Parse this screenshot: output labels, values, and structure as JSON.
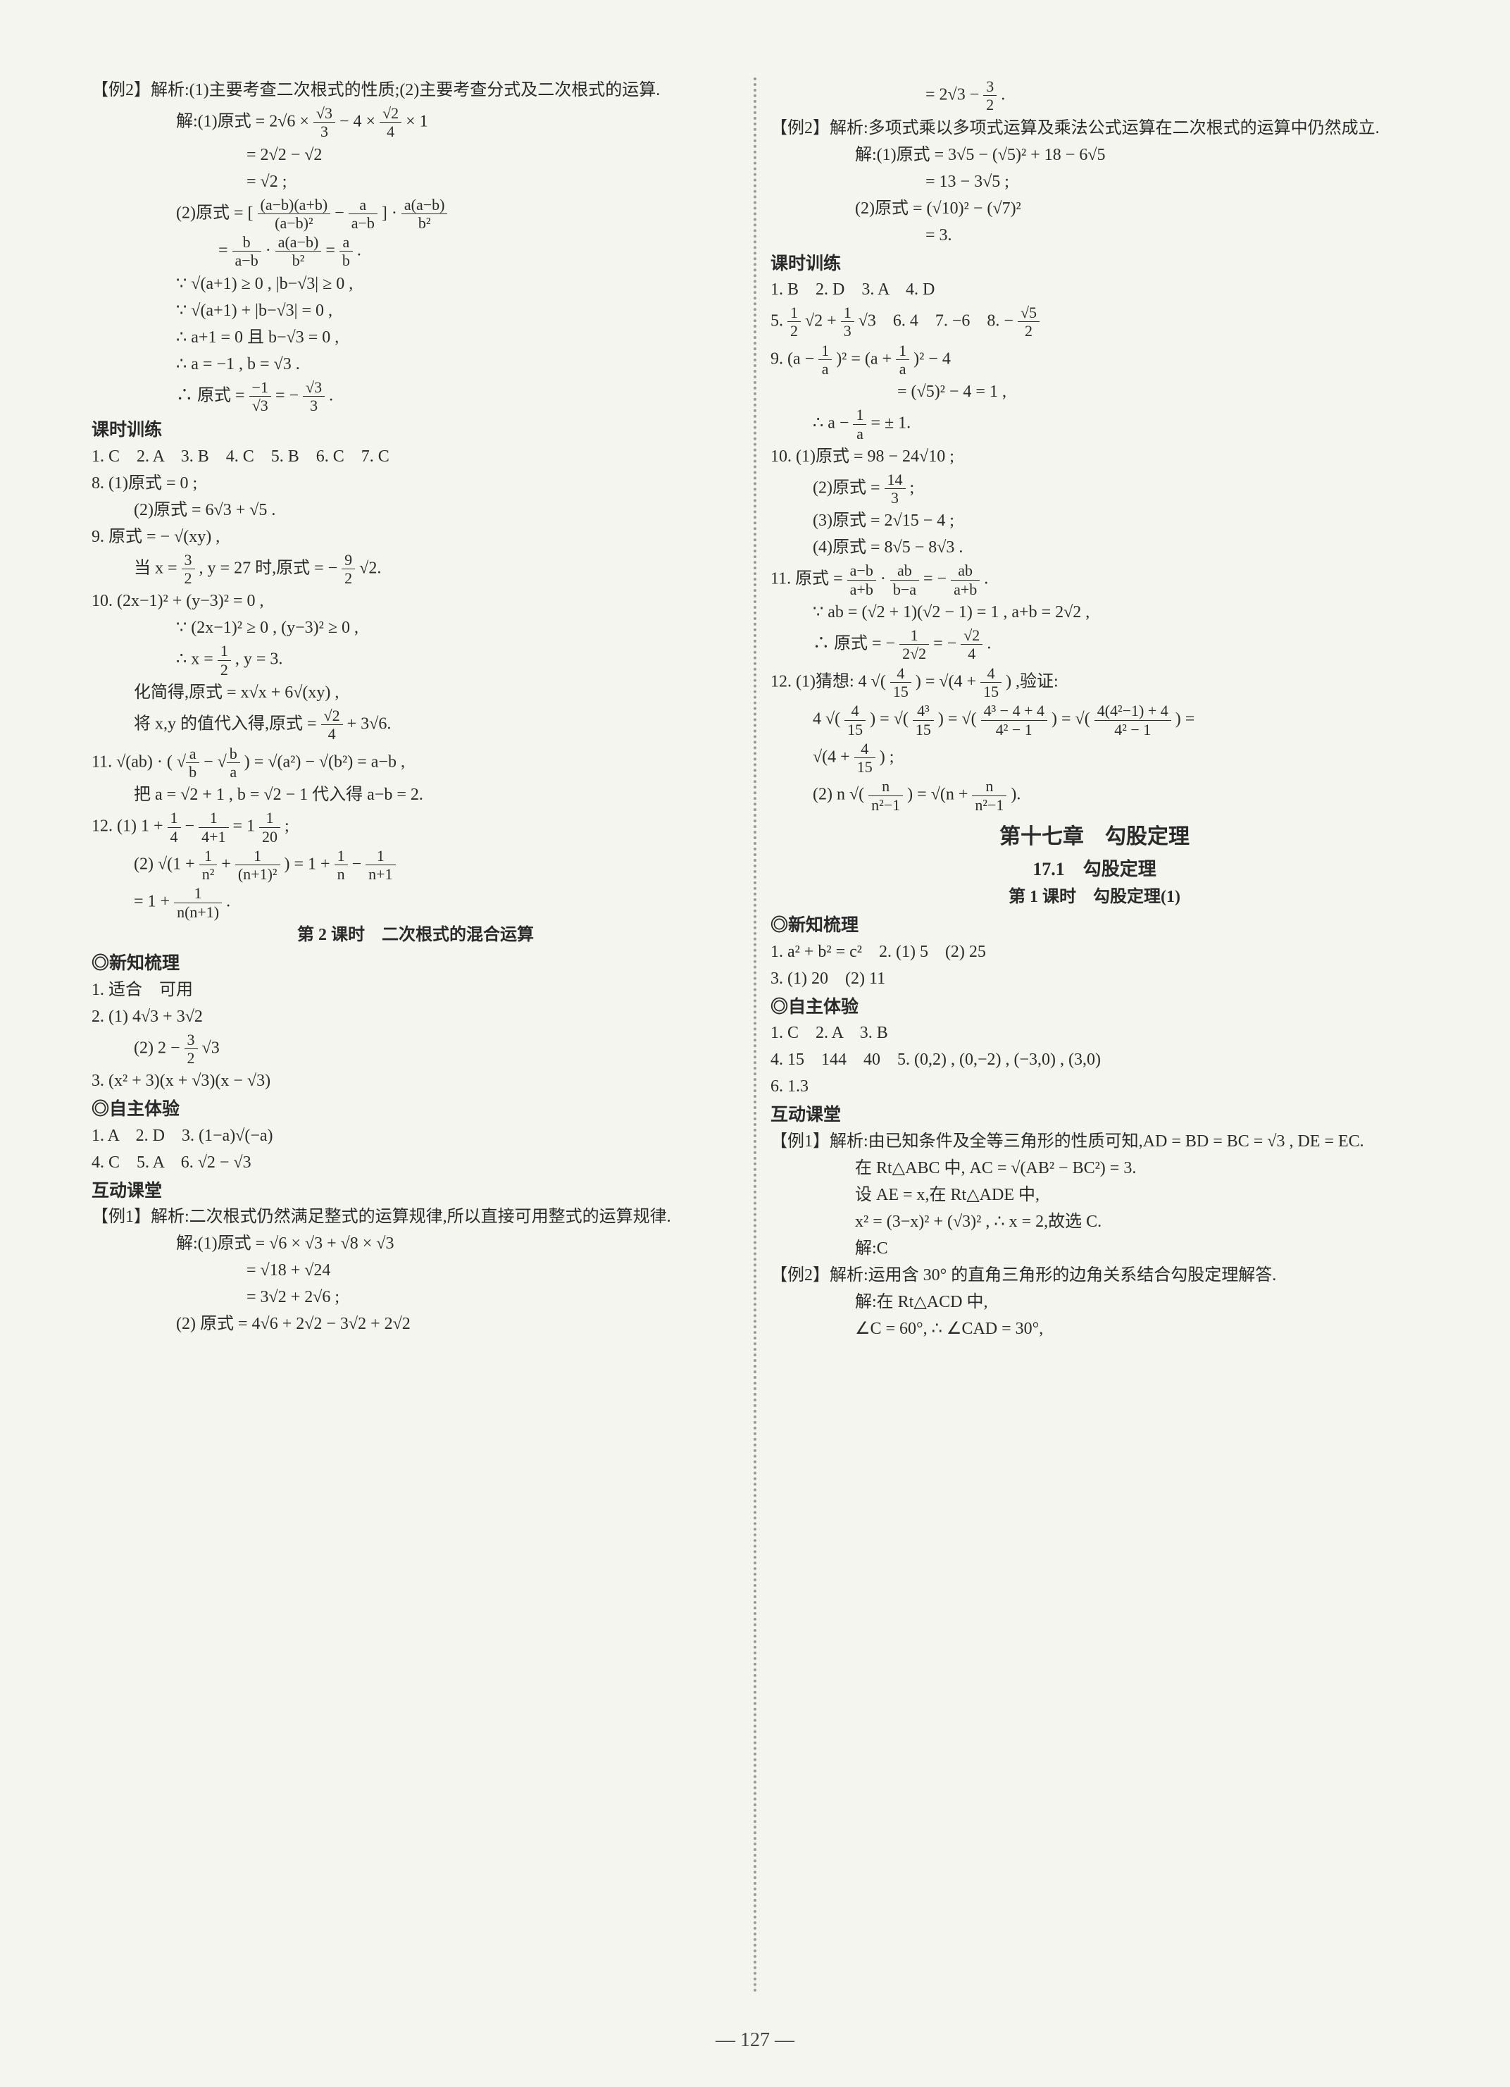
{
  "pageNumber": "— 127 —",
  "leftColumn": {
    "ex2": {
      "header": "【例2】解析:(1)主要考查二次根式的性质;(2)主要考查分式及二次根式的运算.",
      "solve1_label": "解:(1)原式",
      "s1_l1_a": " = 2√6 × ",
      "s1_l1_frac_num": "√3",
      "s1_l1_frac_den": "3",
      "s1_l1_b": " − 4 × ",
      "s1_l1_frac2_num": "√2",
      "s1_l1_frac2_den": "4",
      "s1_l1_c": " × 1",
      "s1_l2": "= 2√2 − √2",
      "s1_l3": "= √2 ;",
      "s2_label": "(2)原式 = [",
      "s2_l1_frac_num": "(a−b)(a+b)",
      "s2_l1_frac_den": "(a−b)²",
      "s2_l1_mid": " − ",
      "s2_l1_frac2_num": "a",
      "s2_l1_frac2_den": "a−b",
      "s2_l1_mid2": "] · ",
      "s2_l1_frac3_num": "a(a−b)",
      "s2_l1_frac3_den": "b²",
      "s2_l2_a": "= ",
      "s2_l2_frac_num": "b",
      "s2_l2_frac_den": "a−b",
      "s2_l2_b": " · ",
      "s2_l2_frac2_num": "a(a−b)",
      "s2_l2_frac2_den": "b²",
      "s2_l2_c": " = ",
      "s2_l2_frac3_num": "a",
      "s2_l2_frac3_den": "b",
      "s2_l2_d": ".",
      "s2_l3": "∵ √(a+1) ≥ 0 , |b−√3| ≥ 0 ,",
      "s2_l4": "∵ √(a+1) + |b−√3| = 0 ,",
      "s2_l5": "∴ a+1 = 0 且 b−√3 = 0 ,",
      "s2_l6": "∴ a = −1 , b = √3 .",
      "s2_l7_a": "∴ 原式 = ",
      "s2_l7_frac_num": "−1",
      "s2_l7_frac_den": "√3",
      "s2_l7_b": " = − ",
      "s2_l7_frac2_num": "√3",
      "s2_l7_frac2_den": "3",
      "s2_l7_c": "."
    },
    "keshi1": {
      "title": "课时训练",
      "q1to7": "1. C　2. A　3. B　4. C　5. B　6. C　7. C",
      "q8_1": "8. (1)原式 = 0 ;",
      "q8_2": "(2)原式 = 6√3 + √5 .",
      "q9_l1": "9. 原式 = − √(xy) ,",
      "q9_l2_a": "当 x = ",
      "q9_l2_frac_num": "3",
      "q9_l2_frac_den": "2",
      "q9_l2_b": " , y = 27 时,原式 = − ",
      "q9_l2_frac2_num": "9",
      "q9_l2_frac2_den": "2",
      "q9_l2_c": "√2.",
      "q10_l1": "10. (2x−1)² + (y−3)² = 0 ,",
      "q10_l2": "∵ (2x−1)² ≥ 0 , (y−3)² ≥ 0 ,",
      "q10_l3_a": "∴ x = ",
      "q10_l3_frac_num": "1",
      "q10_l3_frac_den": "2",
      "q10_l3_b": " , y = 3.",
      "q10_l4": "化简得,原式 = x√x + 6√(xy) ,",
      "q10_l5_a": "将 x,y 的值代入得,原式 = ",
      "q10_l5_frac_num": "√2",
      "q10_l5_frac_den": "4",
      "q10_l5_b": " + 3√6.",
      "q11_l1_a": "11. √(ab) · (",
      "q11_l1_sqrt1_num": "a",
      "q11_l1_sqrt1_den": "b",
      "q11_l1_mid": " − ",
      "q11_l1_sqrt2_num": "b",
      "q11_l1_sqrt2_den": "a",
      "q11_l1_b": " ) = √(a²) − √(b²) = a−b ,",
      "q11_l2": "把 a = √2 + 1 , b = √2 − 1 代入得 a−b = 2.",
      "q12_l1_a": "12. (1) 1 + ",
      "q12_l1_f1_num": "1",
      "q12_l1_f1_den": "4",
      "q12_l1_b": " − ",
      "q12_l1_f2_num": "1",
      "q12_l1_f2_den": "4+1",
      "q12_l1_c": " = 1",
      "q12_l1_f3_num": "1",
      "q12_l1_f3_den": "20",
      "q12_l1_d": " ;",
      "q12_l2_a": "(2) √(1 + ",
      "q12_l2_f1_num": "1",
      "q12_l2_f1_den": "n²",
      "q12_l2_b": " + ",
      "q12_l2_f2_num": "1",
      "q12_l2_f2_den": "(n+1)²",
      "q12_l2_c": " ) = 1 + ",
      "q12_l2_f3_num": "1",
      "q12_l2_f3_den": "n",
      "q12_l2_d": " − ",
      "q12_l2_f4_num": "1",
      "q12_l2_f4_den": "n+1",
      "q12_l3_a": "= 1 + ",
      "q12_l3_f_num": "1",
      "q12_l3_f_den": "n(n+1)",
      "q12_l3_b": "."
    },
    "sec2_title": "第 2 课时　二次根式的混合运算",
    "xinzhi": {
      "title": "◎新知梳理",
      "l1": "1. 适合　可用",
      "l2": "2. (1) 4√3 + 3√2",
      "l3_a": "(2) 2 − ",
      "l3_f_num": "3",
      "l3_f_den": "2",
      "l3_b": "√3",
      "l4": "3. (x² + 3)(x + √3)(x − √3)"
    },
    "zizhu": {
      "title": "◎自主体验",
      "l1": "1. A　2. D　3. (1−a)√(−a)",
      "l2": "4. C　5. A　6. √2 − √3"
    },
    "hudong": {
      "title": "互动课堂",
      "ex1_header": "【例1】解析:二次根式仍然满足整式的运算规律,所以直接可用整式的运算规律.",
      "s1_l1": "解:(1)原式 = √6 × √3 + √8 × √3",
      "s1_l2": "= √18 + √24",
      "s1_l3": "= 3√2 + 2√6 ;",
      "s2_l1": "(2) 原式 = 4√6 + 2√2 − 3√2 + 2√2"
    }
  },
  "rightColumn": {
    "cont_a": "= 2√3 − ",
    "cont_f_num": "3",
    "cont_f_den": "2",
    "cont_b": ".",
    "ex2": {
      "header": "【例2】解析:多项式乘以多项式运算及乘法公式运算在二次根式的运算中仍然成立.",
      "s1_l1": "解:(1)原式 = 3√5 − (√5)² + 18 − 6√5",
      "s1_l2": "= 13 − 3√5 ;",
      "s2_l1": "(2)原式 = (√10)² − (√7)²",
      "s2_l2": "= 3."
    },
    "keshi2": {
      "title": "课时训练",
      "l1": "1. B　2. D　3. A　4. D",
      "l2_a": "5. ",
      "l2_f1_num": "1",
      "l2_f1_den": "2",
      "l2_b": "√2 + ",
      "l2_f2_num": "1",
      "l2_f2_den": "3",
      "l2_c": "√3　6. 4　7. −6　8. − ",
      "l2_f3_num": "√5",
      "l2_f3_den": "2",
      "q9_l1_a": "9. (a − ",
      "q9_l1_f_num": "1",
      "q9_l1_f_den": "a",
      "q9_l1_b": ")² = (a + ",
      "q9_l1_f2_num": "1",
      "q9_l1_f2_den": "a",
      "q9_l1_c": ")² − 4",
      "q9_l2": "= (√5)² − 4 = 1 ,",
      "q9_l3_a": "∴ a − ",
      "q9_l3_f_num": "1",
      "q9_l3_f_den": "a",
      "q9_l3_b": " = ± 1.",
      "q10_l1": "10. (1)原式 = 98 − 24√10 ;",
      "q10_l2_a": "(2)原式 = ",
      "q10_l2_f_num": "14",
      "q10_l2_f_den": "3",
      "q10_l2_b": " ;",
      "q10_l3": "(3)原式 = 2√15 − 4 ;",
      "q10_l4": "(4)原式 = 8√5 − 8√3 .",
      "q11_l1_a": "11. 原式 = ",
      "q11_l1_f1_num": "a−b",
      "q11_l1_f1_den": "a+b",
      "q11_l1_b": " · ",
      "q11_l1_f2_num": "ab",
      "q11_l1_f2_den": "b−a",
      "q11_l1_c": " = − ",
      "q11_l1_f3_num": "ab",
      "q11_l1_f3_den": "a+b",
      "q11_l1_d": ".",
      "q11_l2": "∵ ab = (√2 + 1)(√2 − 1) = 1 , a+b = 2√2 ,",
      "q11_l3_a": "∴ 原式 = − ",
      "q11_l3_f1_num": "1",
      "q11_l3_f1_den": "2√2",
      "q11_l3_b": " = − ",
      "q11_l3_f2_num": "√2",
      "q11_l3_f2_den": "4",
      "q11_l3_c": ".",
      "q12_l1_a": "12. (1)猜想: 4 √(",
      "q12_l1_f_num": "4",
      "q12_l1_f_den": "15",
      "q12_l1_b": ") = √(4 + ",
      "q12_l1_f2_num": "4",
      "q12_l1_f2_den": "15",
      "q12_l1_c": ") ,验证:",
      "q12_l2_a": "4 √(",
      "q12_l2_f1_num": "4",
      "q12_l2_f1_den": "15",
      "q12_l2_b": ") = √(",
      "q12_l2_f2_num": "4³",
      "q12_l2_f2_den": "15",
      "q12_l2_c": ") = √(",
      "q12_l2_f3_num": "4³ − 4 + 4",
      "q12_l2_f3_den": "4² − 1",
      "q12_l2_d": ") = √(",
      "q12_l2_f4_num": "4(4²−1) + 4",
      "q12_l2_f4_den": "4² − 1",
      "q12_l2_e": ") =",
      "q12_l3_a": "√(4 + ",
      "q12_l3_f_num": "4",
      "q12_l3_f_den": "15",
      "q12_l3_b": ") ;",
      "q12_l4_a": "(2) n √(",
      "q12_l4_f_num": "n",
      "q12_l4_f_den": "n²−1",
      "q12_l4_b": ") = √(n + ",
      "q12_l4_f2_num": "n",
      "q12_l4_f2_den": "n²−1",
      "q12_l4_c": ")."
    },
    "ch17": {
      "title": "第十七章　勾股定理",
      "subtitle": "17.1　勾股定理",
      "lesson": "第 1 课时　勾股定理(1)"
    },
    "xinzhi2": {
      "title": "◎新知梳理",
      "l1": "1. a² + b² = c²　2. (1) 5　(2) 25",
      "l2": "3. (1) 20　(2) 11"
    },
    "zizhu2": {
      "title": "◎自主体验",
      "l1": "1. C　2. A　3. B",
      "l2": "4. 15　144　40　5. (0,2) , (0,−2) , (−3,0) , (3,0)",
      "l3": "6. 1.3"
    },
    "hudong2": {
      "title": "互动课堂",
      "ex1_header": "【例1】解析:由已知条件及全等三角形的性质可知,AD = BD = BC = √3 , DE = EC.",
      "ex1_l2": "在 Rt△ABC 中, AC = √(AB² − BC²) = 3.",
      "ex1_l3": "设 AE = x,在 Rt△ADE 中,",
      "ex1_l4": "x² = (3−x)² + (√3)² , ∴ x = 2,故选 C.",
      "ex1_l5": "解:C",
      "ex2_header": "【例2】解析:运用含 30° 的直角三角形的边角关系结合勾股定理解答.",
      "ex2_l1": "解:在 Rt△ACD 中,",
      "ex2_l2": "∠C = 60°, ∴ ∠CAD = 30°,"
    }
  }
}
